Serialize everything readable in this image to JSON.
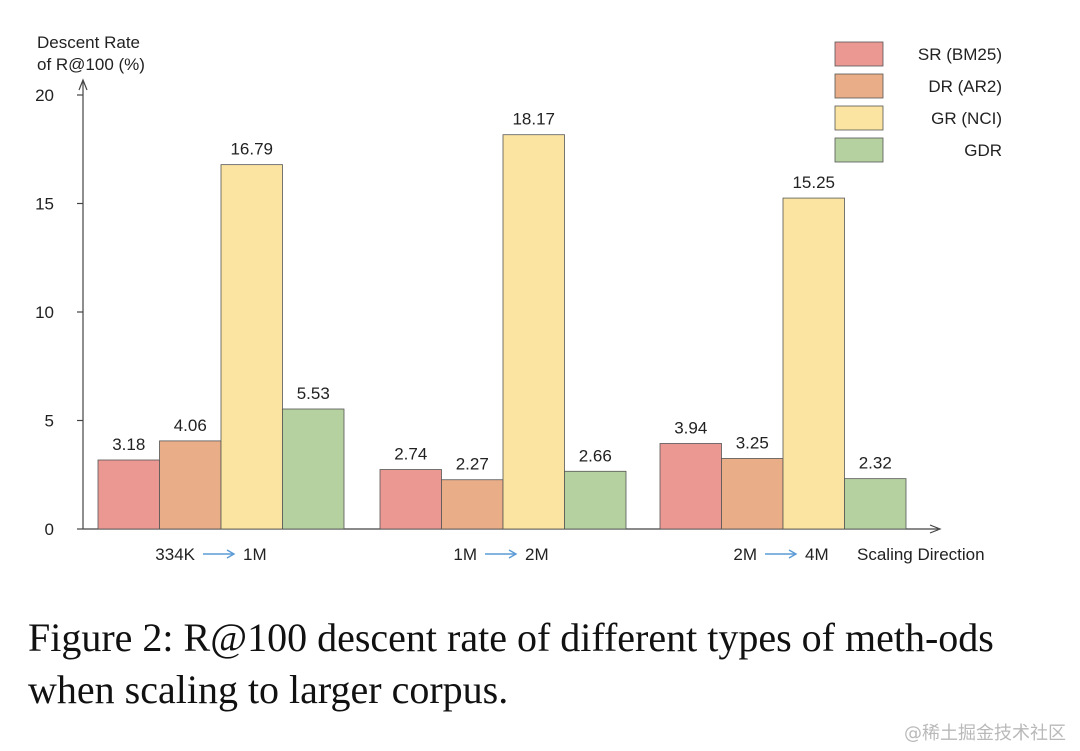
{
  "chart_data": {
    "type": "bar",
    "ylabel_line1": "Descent Rate",
    "ylabel_line2": "of R@100 (%)",
    "xlabel": "Scaling Direction",
    "ylim": [
      0,
      20
    ],
    "yticks": [
      0,
      5,
      10,
      15,
      20
    ],
    "categories": [
      {
        "from": "334K",
        "to": "1M"
      },
      {
        "from": "1M",
        "to": "2M"
      },
      {
        "from": "2M",
        "to": "4M"
      }
    ],
    "series": [
      {
        "name": "SR (BM25)",
        "color": "#eb9892",
        "values": [
          3.18,
          2.74,
          3.94
        ],
        "labels": [
          "3.18",
          "2.74",
          "3.94"
        ]
      },
      {
        "name": "DR (AR2)",
        "color": "#e9ad87",
        "values": [
          4.06,
          2.27,
          3.25
        ],
        "labels": [
          "4.06",
          "2.27",
          "3.25"
        ]
      },
      {
        "name": "GR (NCI)",
        "color": "#fbe4a1",
        "values": [
          16.79,
          18.17,
          15.25
        ],
        "labels": [
          "16.79",
          "18.17",
          "15.25"
        ]
      },
      {
        "name": "GDR",
        "color": "#b6d1a0",
        "values": [
          5.53,
          2.66,
          2.32
        ],
        "labels": [
          "5.53",
          "2.66",
          "2.32"
        ]
      }
    ],
    "legend_position": "top-right",
    "grid": false
  },
  "caption": "Figure 2: R@100 descent rate of different types of meth-ods when scaling to larger corpus.",
  "watermark": "@稀土掘金技术社区",
  "colors": {
    "arrow": "#5b9bd5",
    "axis": "#444444",
    "bar_edge": "#555555"
  }
}
